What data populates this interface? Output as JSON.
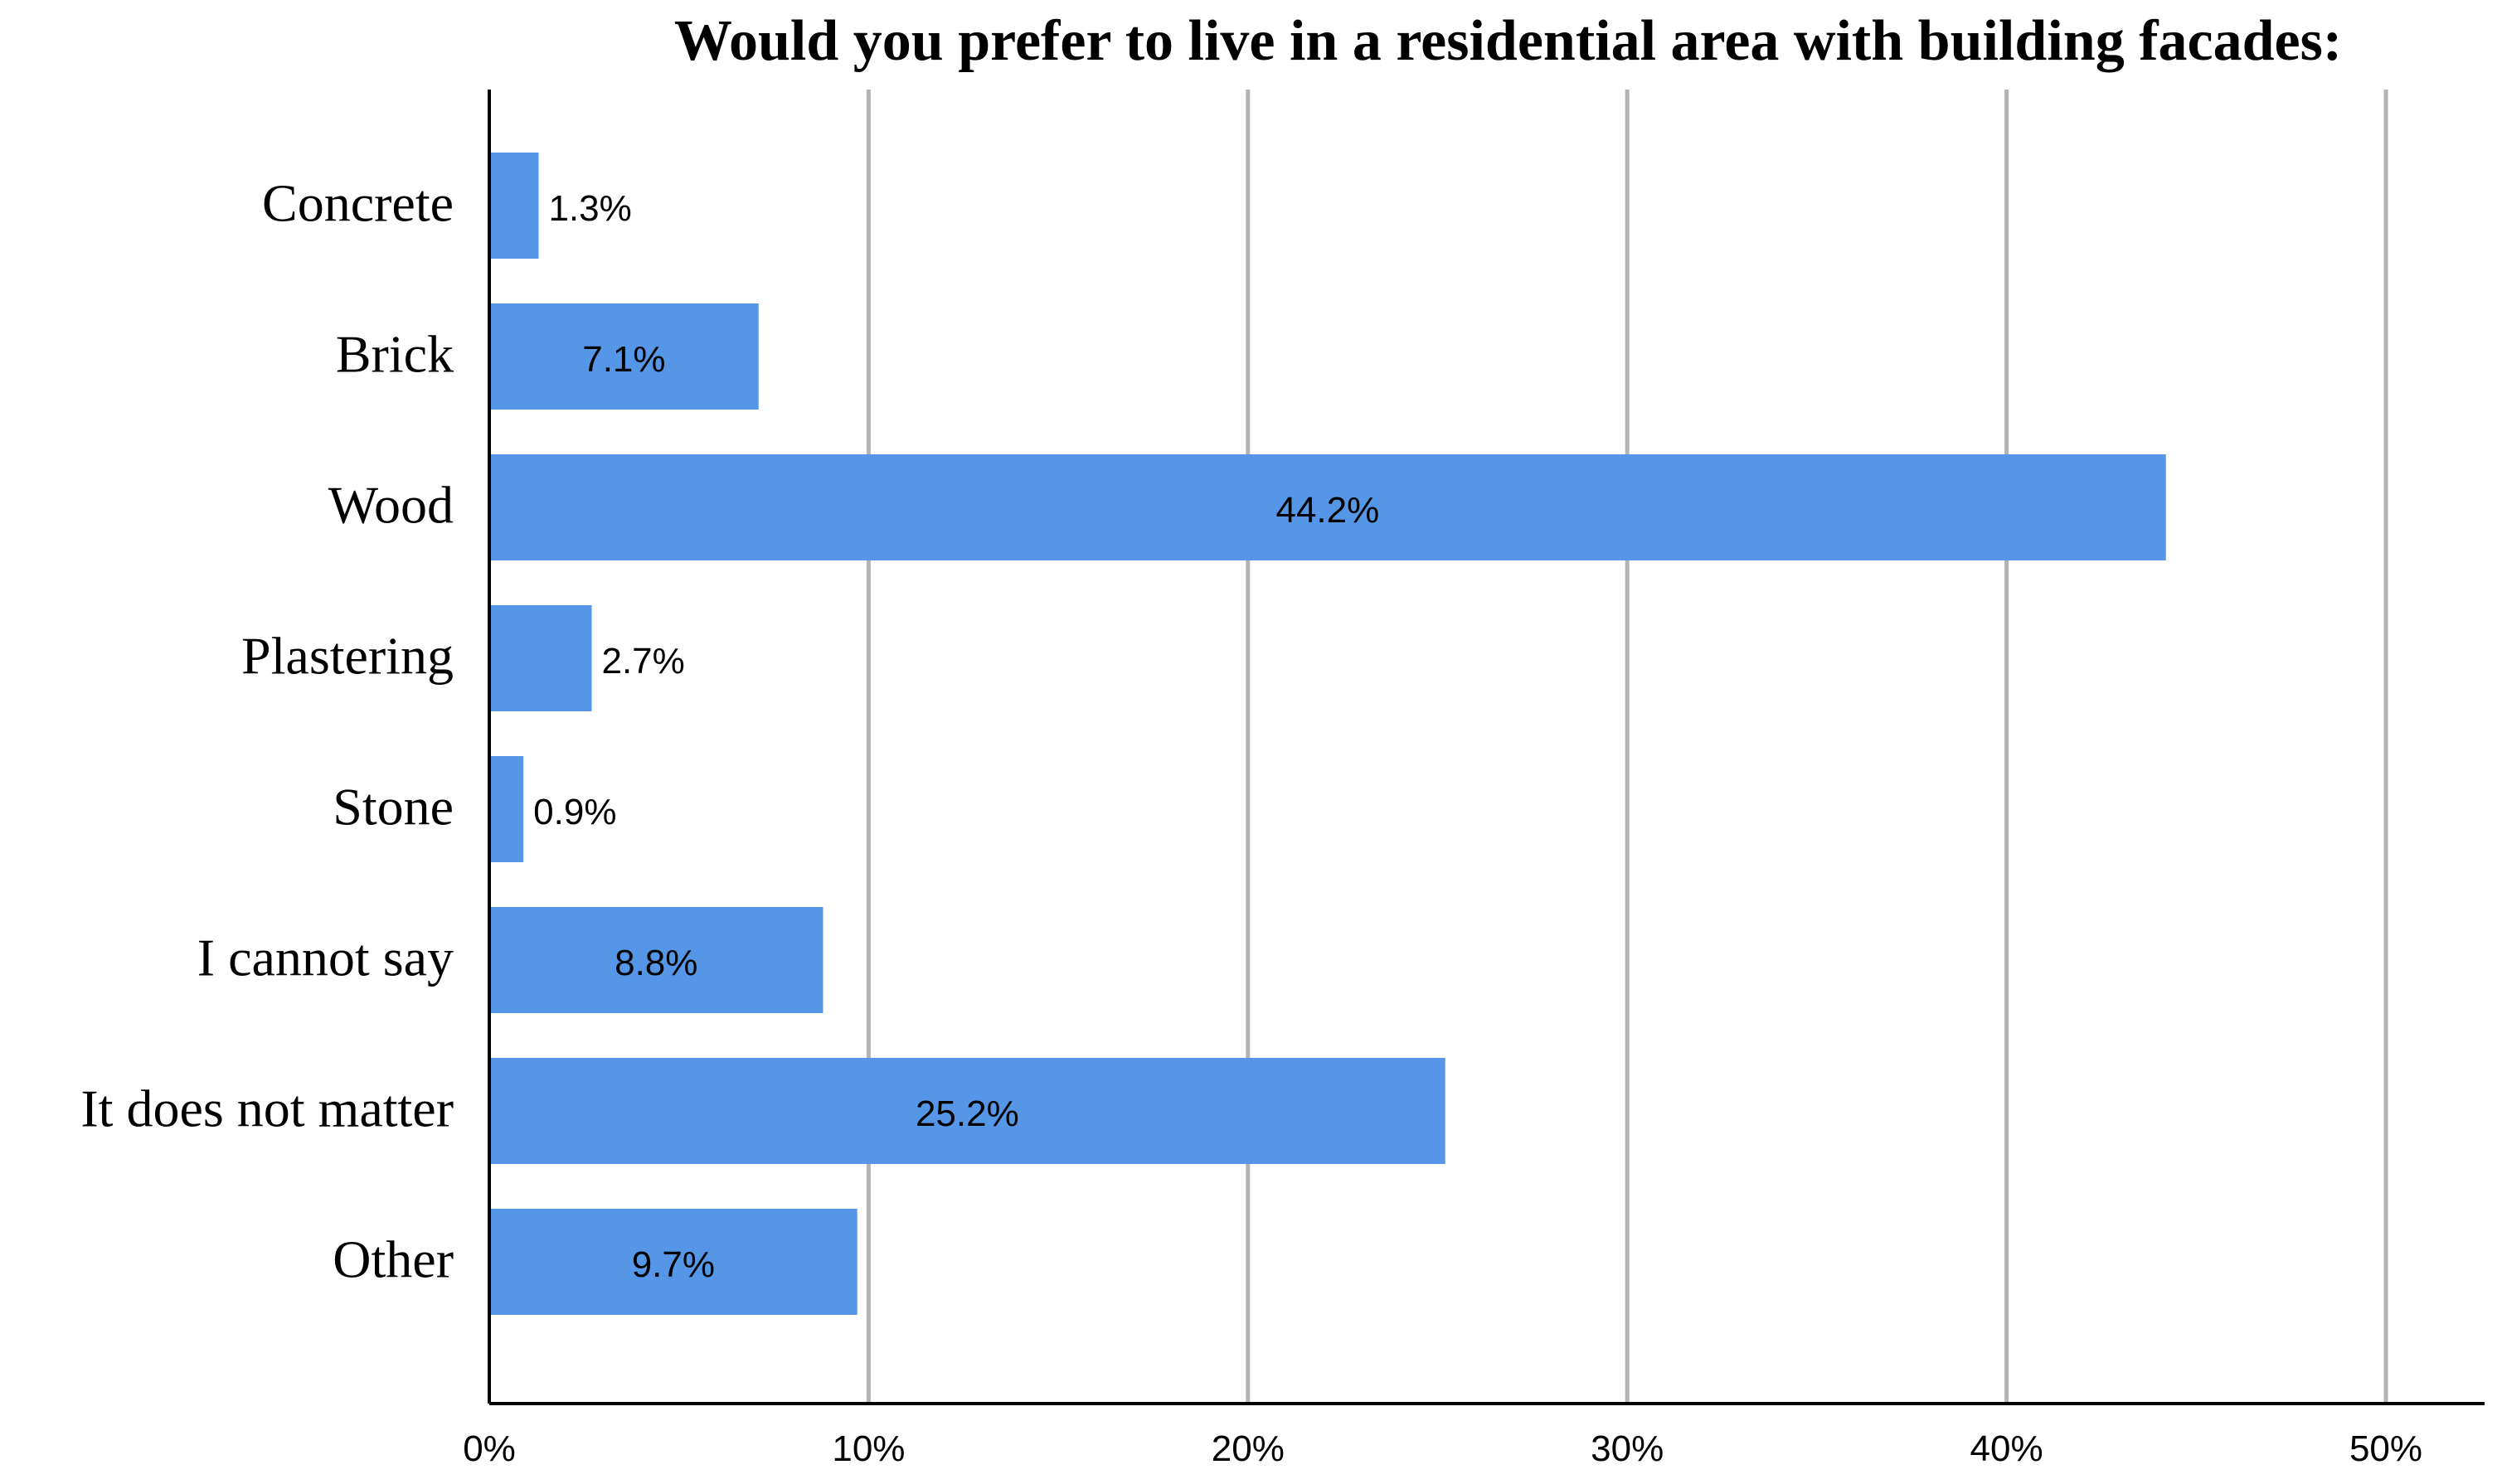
{
  "chart_data": {
    "type": "bar",
    "orientation": "horizontal",
    "title": "Would you prefer to live in a residential area with building facades:",
    "xlabel": "",
    "ylabel": "",
    "categories": [
      "Concrete",
      "Brick",
      "Wood",
      "Plastering",
      "Stone",
      "I cannot say",
      "It does not matter",
      "Other"
    ],
    "values": [
      1.3,
      7.1,
      44.2,
      2.7,
      0.9,
      8.8,
      25.2,
      9.7
    ],
    "data_labels": [
      "1.3%",
      "7.1%",
      "44.2%",
      "2.7%",
      "0.9%",
      "8.8%",
      "25.2%",
      "9.7%"
    ],
    "xlim": [
      0,
      50
    ],
    "x_ticks": [
      0,
      10,
      20,
      30,
      40,
      50
    ],
    "x_tick_labels": [
      "0%",
      "10%",
      "20%",
      "30%",
      "40%",
      "50%"
    ],
    "grid": "vertical",
    "legend": "none",
    "bar_color": "#5596e6",
    "grid_color": "#b4b4b4",
    "axis_color": "#000000"
  }
}
